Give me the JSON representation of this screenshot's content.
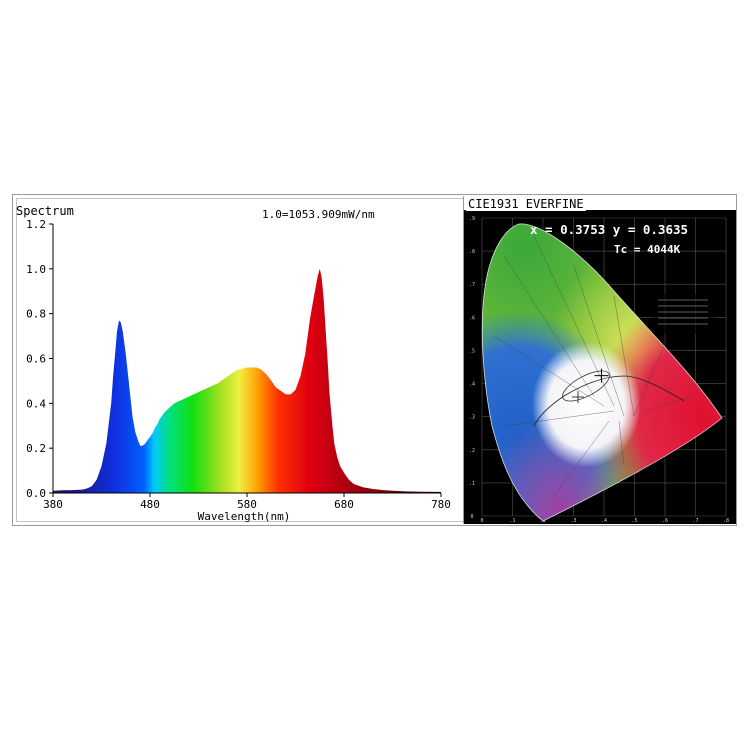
{
  "chart_data": [
    {
      "type": "area",
      "title": "Spectrum",
      "subtitle": "1.0=1053.909mW/nm",
      "xlabel": "Wavelength(nm)",
      "ylabel": "",
      "xlim": [
        380,
        780
      ],
      "ylim": [
        0,
        1.2
      ],
      "x_ticks": [
        "380",
        "480",
        "580",
        "680",
        "780"
      ],
      "y_ticks": [
        "0.0",
        "0.2",
        "0.4",
        "0.6",
        "0.8",
        "1.0",
        "1.2"
      ],
      "fill": "wavelength-color gradient",
      "x": [
        380,
        390,
        400,
        410,
        415,
        420,
        425,
        430,
        435,
        440,
        442,
        444,
        446,
        448,
        450,
        452,
        455,
        458,
        460,
        462,
        465,
        468,
        470,
        472,
        475,
        478,
        480,
        483,
        485,
        488,
        490,
        495,
        500,
        505,
        510,
        515,
        520,
        530,
        540,
        550,
        560,
        570,
        580,
        590,
        595,
        600,
        605,
        610,
        620,
        625,
        630,
        635,
        640,
        645,
        650,
        653,
        655,
        657,
        659,
        661,
        663,
        665,
        668,
        670,
        673,
        676,
        680,
        685,
        690,
        700,
        710,
        720,
        730,
        740,
        760,
        780
      ],
      "values": [
        0.01,
        0.012,
        0.013,
        0.015,
        0.02,
        0.03,
        0.06,
        0.12,
        0.22,
        0.4,
        0.52,
        0.62,
        0.72,
        0.77,
        0.76,
        0.72,
        0.62,
        0.5,
        0.42,
        0.34,
        0.27,
        0.23,
        0.21,
        0.21,
        0.22,
        0.24,
        0.25,
        0.27,
        0.29,
        0.31,
        0.33,
        0.36,
        0.38,
        0.4,
        0.41,
        0.42,
        0.43,
        0.45,
        0.47,
        0.49,
        0.52,
        0.55,
        0.56,
        0.56,
        0.55,
        0.53,
        0.5,
        0.47,
        0.44,
        0.44,
        0.46,
        0.52,
        0.62,
        0.78,
        0.9,
        0.97,
        1.0,
        0.96,
        0.87,
        0.73,
        0.6,
        0.45,
        0.3,
        0.22,
        0.16,
        0.12,
        0.09,
        0.06,
        0.04,
        0.025,
        0.018,
        0.013,
        0.01,
        0.008,
        0.006,
        0.005
      ],
      "grid": false,
      "legend": "none"
    },
    {
      "type": "scatter",
      "title": "CIE1931 EVERFINE",
      "point_label": "x = 0.3753 y = 0.3635",
      "cct_label": "Tc = 4044K",
      "x": [
        0.3753
      ],
      "values": [
        0.3635
      ],
      "xlim": [
        0,
        0.8
      ],
      "ylim": [
        0,
        0.9
      ],
      "grid": true,
      "legend": "none"
    }
  ]
}
